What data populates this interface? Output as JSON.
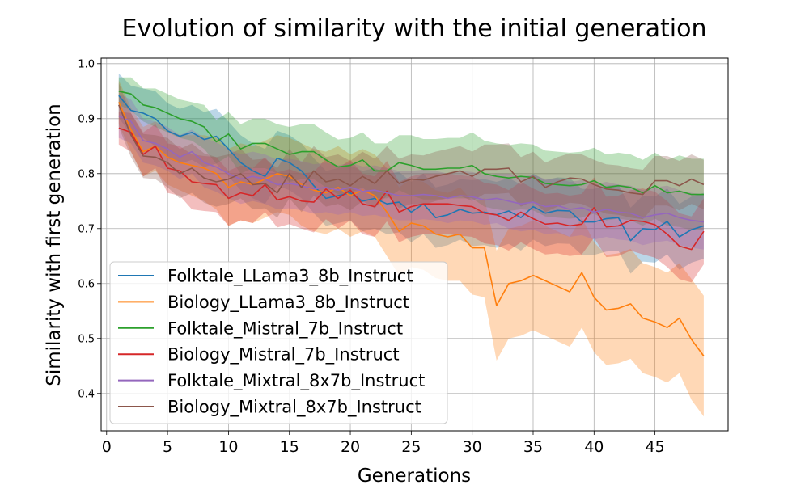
{
  "chart_data": {
    "type": "line",
    "title": "Evolution of similarity with the initial generation",
    "xlabel": "Generations",
    "ylabel": "Similarity with first generation",
    "xlim": [
      -0.45,
      51
    ],
    "ylim": [
      0.332,
      1.01
    ],
    "xticks": [
      0,
      5,
      10,
      15,
      20,
      25,
      30,
      35,
      40,
      45
    ],
    "yticks": [
      0.4,
      0.5,
      0.6,
      0.7,
      0.8,
      0.9,
      1.0
    ],
    "ytick_labels": [
      "0.4",
      "0.5",
      "0.6",
      "0.7",
      "0.8",
      "0.9",
      "1.0"
    ],
    "grid": true,
    "legend_position": "lower-left",
    "x": [
      1,
      2,
      3,
      4,
      5,
      6,
      7,
      8,
      9,
      10,
      11,
      12,
      13,
      14,
      15,
      16,
      17,
      18,
      19,
      20,
      21,
      22,
      23,
      24,
      25,
      26,
      27,
      28,
      29,
      30,
      31,
      32,
      33,
      34,
      35,
      36,
      37,
      38,
      39,
      40,
      41,
      42,
      43,
      44,
      45,
      46,
      47,
      48,
      49
    ],
    "series": [
      {
        "name": "Folktale_LLama3_8b_Instruct",
        "color": "#1f77b4",
        "values": [
          0.942,
          0.915,
          0.91,
          0.9,
          0.878,
          0.868,
          0.875,
          0.862,
          0.868,
          0.845,
          0.82,
          0.805,
          0.795,
          0.828,
          0.82,
          0.805,
          0.778,
          0.755,
          0.76,
          0.765,
          0.75,
          0.755,
          0.745,
          0.748,
          0.73,
          0.745,
          0.72,
          0.725,
          0.735,
          0.728,
          0.73,
          0.725,
          0.732,
          0.72,
          0.74,
          0.728,
          0.733,
          0.732,
          0.712,
          0.712,
          0.718,
          0.72,
          0.678,
          0.7,
          0.698,
          0.713,
          0.685,
          0.698,
          0.705
        ],
        "band": [
          0.04,
          0.045,
          0.045,
          0.05,
          0.05,
          0.05,
          0.05,
          0.05,
          0.05,
          0.05,
          0.05,
          0.05,
          0.05,
          0.05,
          0.05,
          0.05,
          0.05,
          0.05,
          0.05,
          0.05,
          0.055,
          0.055,
          0.055,
          0.055,
          0.055,
          0.055,
          0.055,
          0.055,
          0.055,
          0.06,
          0.06,
          0.06,
          0.06,
          0.06,
          0.06,
          0.06,
          0.06,
          0.06,
          0.06,
          0.06,
          0.06,
          0.06,
          0.06,
          0.06,
          0.06,
          0.06,
          0.06,
          0.06,
          0.06
        ]
      },
      {
        "name": "Biology_LLama3_8b_Instruct",
        "color": "#ff7f0e",
        "values": [
          0.93,
          0.88,
          0.84,
          0.85,
          0.83,
          0.82,
          0.815,
          0.81,
          0.8,
          0.775,
          0.785,
          0.78,
          0.79,
          0.8,
          0.795,
          0.78,
          0.77,
          0.765,
          0.775,
          0.76,
          0.77,
          0.76,
          0.73,
          0.695,
          0.71,
          0.705,
          0.69,
          0.685,
          0.69,
          0.665,
          0.665,
          0.56,
          0.6,
          0.605,
          0.615,
          0.605,
          0.595,
          0.585,
          0.62,
          0.575,
          0.552,
          0.555,
          0.563,
          0.537,
          0.53,
          0.52,
          0.537,
          0.498,
          0.468
        ],
        "band": [
          0.04,
          0.04,
          0.045,
          0.045,
          0.05,
          0.05,
          0.055,
          0.06,
          0.065,
          0.07,
          0.07,
          0.07,
          0.07,
          0.07,
          0.07,
          0.075,
          0.075,
          0.075,
          0.075,
          0.075,
          0.075,
          0.075,
          0.08,
          0.08,
          0.08,
          0.08,
          0.08,
          0.08,
          0.085,
          0.085,
          0.09,
          0.1,
          0.1,
          0.1,
          0.1,
          0.1,
          0.1,
          0.1,
          0.1,
          0.1,
          0.1,
          0.1,
          0.1,
          0.1,
          0.1,
          0.1,
          0.1,
          0.11,
          0.11
        ]
      },
      {
        "name": "Folktale_Mistral_7b_Instruct",
        "color": "#2ca02c",
        "values": [
          0.95,
          0.945,
          0.925,
          0.92,
          0.91,
          0.9,
          0.895,
          0.885,
          0.858,
          0.872,
          0.845,
          0.855,
          0.855,
          0.845,
          0.835,
          0.84,
          0.84,
          0.825,
          0.812,
          0.815,
          0.825,
          0.805,
          0.805,
          0.82,
          0.815,
          0.808,
          0.808,
          0.81,
          0.81,
          0.815,
          0.8,
          0.795,
          0.792,
          0.795,
          0.793,
          0.782,
          0.78,
          0.778,
          0.78,
          0.787,
          0.775,
          0.778,
          0.775,
          0.765,
          0.778,
          0.765,
          0.768,
          0.762,
          0.762
        ],
        "band": [
          0.025,
          0.03,
          0.03,
          0.035,
          0.035,
          0.035,
          0.035,
          0.04,
          0.04,
          0.04,
          0.045,
          0.045,
          0.045,
          0.045,
          0.05,
          0.05,
          0.05,
          0.05,
          0.05,
          0.05,
          0.05,
          0.05,
          0.05,
          0.05,
          0.055,
          0.055,
          0.055,
          0.055,
          0.055,
          0.06,
          0.06,
          0.06,
          0.06,
          0.06,
          0.06,
          0.06,
          0.06,
          0.06,
          0.06,
          0.06,
          0.06,
          0.06,
          0.06,
          0.06,
          0.06,
          0.06,
          0.065,
          0.065,
          0.065
        ]
      },
      {
        "name": "Biology_Mistral_7b_Instruct",
        "color": "#d62728",
        "values": [
          0.883,
          0.875,
          0.835,
          0.85,
          0.81,
          0.805,
          0.785,
          0.782,
          0.78,
          0.755,
          0.765,
          0.76,
          0.78,
          0.752,
          0.758,
          0.75,
          0.748,
          0.772,
          0.755,
          0.77,
          0.745,
          0.74,
          0.768,
          0.73,
          0.74,
          0.745,
          0.745,
          0.745,
          0.742,
          0.74,
          0.728,
          0.725,
          0.715,
          0.73,
          0.718,
          0.708,
          0.71,
          0.705,
          0.708,
          0.738,
          0.703,
          0.705,
          0.715,
          0.713,
          0.707,
          0.69,
          0.668,
          0.662,
          0.695
        ],
        "band": [
          0.03,
          0.035,
          0.04,
          0.04,
          0.045,
          0.045,
          0.05,
          0.05,
          0.05,
          0.05,
          0.05,
          0.05,
          0.05,
          0.05,
          0.05,
          0.05,
          0.055,
          0.055,
          0.055,
          0.055,
          0.055,
          0.055,
          0.055,
          0.055,
          0.055,
          0.055,
          0.055,
          0.055,
          0.055,
          0.055,
          0.055,
          0.055,
          0.055,
          0.055,
          0.055,
          0.055,
          0.055,
          0.055,
          0.055,
          0.055,
          0.055,
          0.055,
          0.055,
          0.06,
          0.06,
          0.06,
          0.06,
          0.06,
          0.06
        ]
      },
      {
        "name": "Folktale_Mixtral_8x7b_Instruct",
        "color": "#9467bd",
        "values": [
          0.905,
          0.895,
          0.86,
          0.855,
          0.845,
          0.83,
          0.84,
          0.82,
          0.812,
          0.8,
          0.79,
          0.795,
          0.79,
          0.78,
          0.782,
          0.778,
          0.772,
          0.775,
          0.77,
          0.775,
          0.768,
          0.77,
          0.765,
          0.76,
          0.76,
          0.762,
          0.76,
          0.755,
          0.76,
          0.758,
          0.752,
          0.755,
          0.75,
          0.745,
          0.748,
          0.74,
          0.742,
          0.735,
          0.738,
          0.73,
          0.735,
          0.73,
          0.728,
          0.72,
          0.725,
          0.728,
          0.72,
          0.715,
          0.712
        ],
        "band": [
          0.04,
          0.04,
          0.04,
          0.04,
          0.04,
          0.04,
          0.04,
          0.045,
          0.045,
          0.045,
          0.045,
          0.045,
          0.045,
          0.045,
          0.045,
          0.045,
          0.045,
          0.045,
          0.045,
          0.045,
          0.045,
          0.045,
          0.045,
          0.045,
          0.045,
          0.045,
          0.045,
          0.045,
          0.045,
          0.045,
          0.045,
          0.045,
          0.05,
          0.05,
          0.05,
          0.05,
          0.05,
          0.05,
          0.05,
          0.05,
          0.05,
          0.05,
          0.05,
          0.05,
          0.05,
          0.05,
          0.05,
          0.05,
          0.05
        ]
      },
      {
        "name": "Biology_Mixtral_8x7b_Instruct",
        "color": "#8c564b",
        "values": [
          0.925,
          0.87,
          0.832,
          0.83,
          0.82,
          0.8,
          0.81,
          0.792,
          0.785,
          0.79,
          0.8,
          0.78,
          0.782,
          0.765,
          0.8,
          0.775,
          0.805,
          0.785,
          0.79,
          0.778,
          0.795,
          0.782,
          0.805,
          0.782,
          0.79,
          0.788,
          0.795,
          0.8,
          0.805,
          0.795,
          0.808,
          0.808,
          0.81,
          0.785,
          0.795,
          0.775,
          0.785,
          0.792,
          0.79,
          0.78,
          0.772,
          0.77,
          0.765,
          0.762,
          0.787,
          0.787,
          0.778,
          0.79,
          0.78
        ],
        "band": [
          0.04,
          0.04,
          0.04,
          0.04,
          0.045,
          0.045,
          0.045,
          0.045,
          0.045,
          0.045,
          0.045,
          0.045,
          0.045,
          0.045,
          0.045,
          0.045,
          0.045,
          0.045,
          0.045,
          0.045,
          0.045,
          0.045,
          0.045,
          0.045,
          0.045,
          0.045,
          0.045,
          0.045,
          0.045,
          0.045,
          0.045,
          0.045,
          0.045,
          0.045,
          0.045,
          0.045,
          0.045,
          0.045,
          0.045,
          0.045,
          0.045,
          0.045,
          0.045,
          0.045,
          0.045,
          0.045,
          0.045,
          0.045,
          0.045
        ]
      }
    ]
  }
}
